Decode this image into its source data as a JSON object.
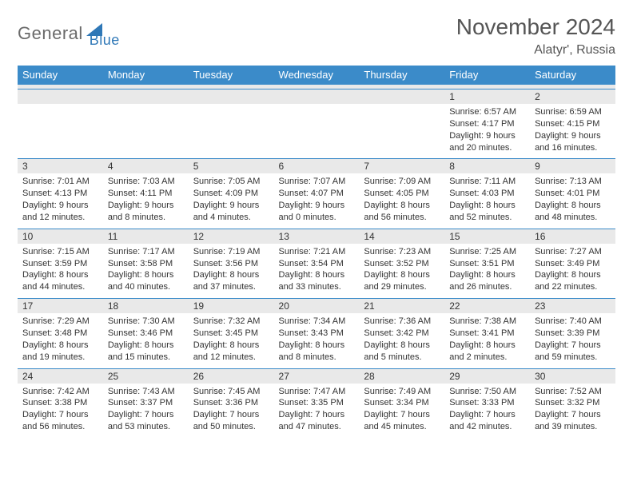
{
  "logo": {
    "general": "General",
    "blue": "Blue"
  },
  "title": "November 2024",
  "subtitle": "Alatyr', Russia",
  "style": {
    "header_bg": "#3b8bc9",
    "header_fg": "#ffffff",
    "stripe_bg": "#e9e9e9",
    "border_color": "#3b8bc9",
    "body_fontsize": 11,
    "daynum_fontsize": 12,
    "title_fontsize": 28,
    "subtitle_fontsize": 16
  },
  "dow": [
    "Sunday",
    "Monday",
    "Tuesday",
    "Wednesday",
    "Thursday",
    "Friday",
    "Saturday"
  ],
  "weeks": [
    [
      null,
      null,
      null,
      null,
      null,
      {
        "n": "1",
        "sr": "Sunrise: 6:57 AM",
        "ss": "Sunset: 4:17 PM",
        "d1": "Daylight: 9 hours",
        "d2": "and 20 minutes."
      },
      {
        "n": "2",
        "sr": "Sunrise: 6:59 AM",
        "ss": "Sunset: 4:15 PM",
        "d1": "Daylight: 9 hours",
        "d2": "and 16 minutes."
      }
    ],
    [
      {
        "n": "3",
        "sr": "Sunrise: 7:01 AM",
        "ss": "Sunset: 4:13 PM",
        "d1": "Daylight: 9 hours",
        "d2": "and 12 minutes."
      },
      {
        "n": "4",
        "sr": "Sunrise: 7:03 AM",
        "ss": "Sunset: 4:11 PM",
        "d1": "Daylight: 9 hours",
        "d2": "and 8 minutes."
      },
      {
        "n": "5",
        "sr": "Sunrise: 7:05 AM",
        "ss": "Sunset: 4:09 PM",
        "d1": "Daylight: 9 hours",
        "d2": "and 4 minutes."
      },
      {
        "n": "6",
        "sr": "Sunrise: 7:07 AM",
        "ss": "Sunset: 4:07 PM",
        "d1": "Daylight: 9 hours",
        "d2": "and 0 minutes."
      },
      {
        "n": "7",
        "sr": "Sunrise: 7:09 AM",
        "ss": "Sunset: 4:05 PM",
        "d1": "Daylight: 8 hours",
        "d2": "and 56 minutes."
      },
      {
        "n": "8",
        "sr": "Sunrise: 7:11 AM",
        "ss": "Sunset: 4:03 PM",
        "d1": "Daylight: 8 hours",
        "d2": "and 52 minutes."
      },
      {
        "n": "9",
        "sr": "Sunrise: 7:13 AM",
        "ss": "Sunset: 4:01 PM",
        "d1": "Daylight: 8 hours",
        "d2": "and 48 minutes."
      }
    ],
    [
      {
        "n": "10",
        "sr": "Sunrise: 7:15 AM",
        "ss": "Sunset: 3:59 PM",
        "d1": "Daylight: 8 hours",
        "d2": "and 44 minutes."
      },
      {
        "n": "11",
        "sr": "Sunrise: 7:17 AM",
        "ss": "Sunset: 3:58 PM",
        "d1": "Daylight: 8 hours",
        "d2": "and 40 minutes."
      },
      {
        "n": "12",
        "sr": "Sunrise: 7:19 AM",
        "ss": "Sunset: 3:56 PM",
        "d1": "Daylight: 8 hours",
        "d2": "and 37 minutes."
      },
      {
        "n": "13",
        "sr": "Sunrise: 7:21 AM",
        "ss": "Sunset: 3:54 PM",
        "d1": "Daylight: 8 hours",
        "d2": "and 33 minutes."
      },
      {
        "n": "14",
        "sr": "Sunrise: 7:23 AM",
        "ss": "Sunset: 3:52 PM",
        "d1": "Daylight: 8 hours",
        "d2": "and 29 minutes."
      },
      {
        "n": "15",
        "sr": "Sunrise: 7:25 AM",
        "ss": "Sunset: 3:51 PM",
        "d1": "Daylight: 8 hours",
        "d2": "and 26 minutes."
      },
      {
        "n": "16",
        "sr": "Sunrise: 7:27 AM",
        "ss": "Sunset: 3:49 PM",
        "d1": "Daylight: 8 hours",
        "d2": "and 22 minutes."
      }
    ],
    [
      {
        "n": "17",
        "sr": "Sunrise: 7:29 AM",
        "ss": "Sunset: 3:48 PM",
        "d1": "Daylight: 8 hours",
        "d2": "and 19 minutes."
      },
      {
        "n": "18",
        "sr": "Sunrise: 7:30 AM",
        "ss": "Sunset: 3:46 PM",
        "d1": "Daylight: 8 hours",
        "d2": "and 15 minutes."
      },
      {
        "n": "19",
        "sr": "Sunrise: 7:32 AM",
        "ss": "Sunset: 3:45 PM",
        "d1": "Daylight: 8 hours",
        "d2": "and 12 minutes."
      },
      {
        "n": "20",
        "sr": "Sunrise: 7:34 AM",
        "ss": "Sunset: 3:43 PM",
        "d1": "Daylight: 8 hours",
        "d2": "and 8 minutes."
      },
      {
        "n": "21",
        "sr": "Sunrise: 7:36 AM",
        "ss": "Sunset: 3:42 PM",
        "d1": "Daylight: 8 hours",
        "d2": "and 5 minutes."
      },
      {
        "n": "22",
        "sr": "Sunrise: 7:38 AM",
        "ss": "Sunset: 3:41 PM",
        "d1": "Daylight: 8 hours",
        "d2": "and 2 minutes."
      },
      {
        "n": "23",
        "sr": "Sunrise: 7:40 AM",
        "ss": "Sunset: 3:39 PM",
        "d1": "Daylight: 7 hours",
        "d2": "and 59 minutes."
      }
    ],
    [
      {
        "n": "24",
        "sr": "Sunrise: 7:42 AM",
        "ss": "Sunset: 3:38 PM",
        "d1": "Daylight: 7 hours",
        "d2": "and 56 minutes."
      },
      {
        "n": "25",
        "sr": "Sunrise: 7:43 AM",
        "ss": "Sunset: 3:37 PM",
        "d1": "Daylight: 7 hours",
        "d2": "and 53 minutes."
      },
      {
        "n": "26",
        "sr": "Sunrise: 7:45 AM",
        "ss": "Sunset: 3:36 PM",
        "d1": "Daylight: 7 hours",
        "d2": "and 50 minutes."
      },
      {
        "n": "27",
        "sr": "Sunrise: 7:47 AM",
        "ss": "Sunset: 3:35 PM",
        "d1": "Daylight: 7 hours",
        "d2": "and 47 minutes."
      },
      {
        "n": "28",
        "sr": "Sunrise: 7:49 AM",
        "ss": "Sunset: 3:34 PM",
        "d1": "Daylight: 7 hours",
        "d2": "and 45 minutes."
      },
      {
        "n": "29",
        "sr": "Sunrise: 7:50 AM",
        "ss": "Sunset: 3:33 PM",
        "d1": "Daylight: 7 hours",
        "d2": "and 42 minutes."
      },
      {
        "n": "30",
        "sr": "Sunrise: 7:52 AM",
        "ss": "Sunset: 3:32 PM",
        "d1": "Daylight: 7 hours",
        "d2": "and 39 minutes."
      }
    ]
  ]
}
